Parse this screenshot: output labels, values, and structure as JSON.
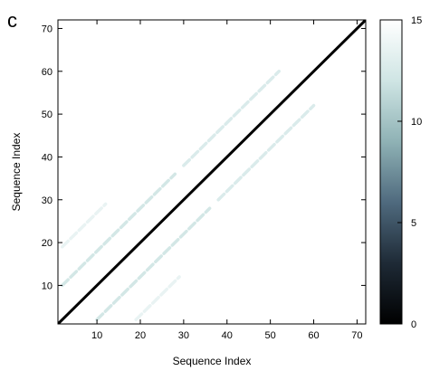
{
  "panel_label": "c",
  "chart_data": {
    "type": "heatmap",
    "xlabel": "Sequence Index",
    "ylabel": "Sequence Index",
    "xlim": [
      1,
      72
    ],
    "ylim": [
      1,
      72
    ],
    "x_ticks": [
      10,
      20,
      30,
      40,
      50,
      60,
      70
    ],
    "y_ticks": [
      10,
      20,
      30,
      40,
      50,
      60,
      70
    ],
    "colorbar": {
      "range": [
        0,
        15
      ],
      "ticks": [
        0,
        5,
        10,
        15
      ]
    },
    "colormap": [
      "#000000",
      "#1e2a36",
      "#4f6a7e",
      "#8fb2b5",
      "#cfe5e4",
      "#ffffff"
    ],
    "main_diagonal_value": 0,
    "offdiagonal_bands": [
      {
        "lag": 8,
        "x_range": [
          2,
          28
        ],
        "value": 12
      },
      {
        "lag": -8,
        "x_range": [
          10,
          36
        ],
        "value": 12
      },
      {
        "lag": 8,
        "x_range": [
          30,
          52
        ],
        "value": 12.5
      },
      {
        "lag": -8,
        "x_range": [
          38,
          60
        ],
        "value": 12.5
      },
      {
        "lag": 17,
        "x_range": [
          2,
          12
        ],
        "value": 13.5
      },
      {
        "lag": -17,
        "x_range": [
          19,
          29
        ],
        "value": 13.5
      }
    ]
  }
}
